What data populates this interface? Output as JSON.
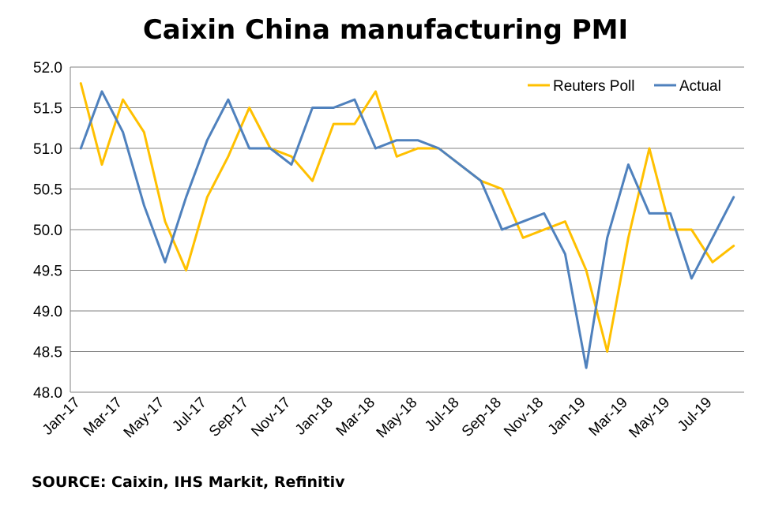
{
  "title": "Caixin China manufacturing PMI",
  "source": "SOURCE: Caixin, IHS Markit, Refinitiv",
  "colors": {
    "reuters_poll": "#FFC000",
    "actual": "#4F81BD",
    "grid": "#808080",
    "axis": "#000000"
  },
  "chart_data": {
    "type": "line",
    "title": "Caixin China manufacturing PMI",
    "xlabel": "",
    "ylabel": "",
    "ylim": [
      48.0,
      52.0
    ],
    "yticks": [
      "48.0",
      "48.5",
      "49.0",
      "49.5",
      "50.0",
      "50.5",
      "51.0",
      "51.5",
      "52.0"
    ],
    "grid": true,
    "legend_position": "top-right",
    "x": [
      "Jan-17",
      "Feb-17",
      "Mar-17",
      "Apr-17",
      "May-17",
      "Jun-17",
      "Jul-17",
      "Aug-17",
      "Sep-17",
      "Oct-17",
      "Nov-17",
      "Dec-17",
      "Jan-18",
      "Feb-18",
      "Mar-18",
      "Apr-18",
      "May-18",
      "Jun-18",
      "Jul-18",
      "Aug-18",
      "Sep-18",
      "Oct-18",
      "Nov-18",
      "Dec-18",
      "Jan-19",
      "Feb-19",
      "Mar-19",
      "Apr-19",
      "May-19",
      "Jun-19",
      "Jul-19",
      "Aug-19"
    ],
    "x_tick_labels": [
      "Jan-17",
      "Mar-17",
      "May-17",
      "Jul-17",
      "Sep-17",
      "Nov-17",
      "Jan-18",
      "Mar-18",
      "May-18",
      "Jul-18",
      "Sep-18",
      "Nov-18",
      "Jan-19",
      "Mar-19",
      "May-19",
      "Jul-19"
    ],
    "series": [
      {
        "name": "Reuters Poll",
        "color": "#FFC000",
        "values": [
          51.8,
          50.8,
          51.6,
          51.2,
          50.1,
          49.5,
          50.4,
          50.9,
          51.5,
          51.0,
          50.9,
          50.6,
          51.3,
          51.3,
          51.7,
          50.9,
          51.0,
          51.0,
          null,
          50.6,
          50.5,
          49.9,
          50.0,
          50.1,
          49.5,
          48.5,
          49.9,
          51.0,
          50.0,
          50.0,
          49.6,
          49.8
        ]
      },
      {
        "name": "Actual",
        "color": "#4F81BD",
        "values": [
          51.0,
          51.7,
          51.2,
          50.3,
          49.6,
          50.4,
          51.1,
          51.6,
          51.0,
          51.0,
          50.8,
          51.5,
          51.5,
          51.6,
          51.0,
          51.1,
          51.1,
          51.0,
          50.8,
          50.6,
          50.0,
          50.1,
          50.2,
          49.7,
          48.3,
          49.9,
          50.8,
          50.2,
          50.2,
          49.4,
          49.9,
          50.4
        ]
      }
    ]
  }
}
